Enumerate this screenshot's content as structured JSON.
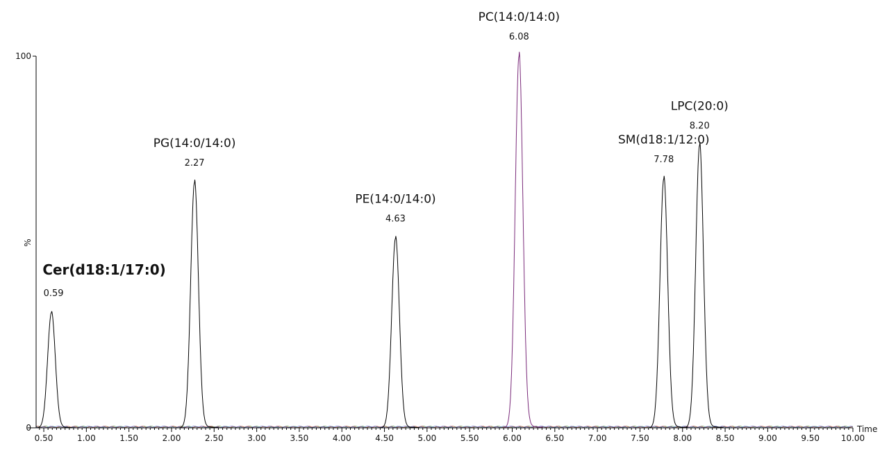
{
  "chart_data": {
    "type": "line",
    "title": "",
    "xlabel": "Time",
    "ylabel": "%",
    "xlim": [
      0.41,
      10.0
    ],
    "ylim": [
      0,
      100
    ],
    "y_ticks": [
      "0",
      "100"
    ],
    "x_ticks": [
      "0.50",
      "1.00",
      "1.50",
      "2.00",
      "2.50",
      "3.00",
      "3.50",
      "4.00",
      "4.50",
      "5.00",
      "5.50",
      "6.00",
      "6.50",
      "7.00",
      "7.50",
      "8.00",
      "8.50",
      "9.00",
      "9.50",
      "10.00"
    ],
    "grid": false,
    "peaks": [
      {
        "name": "Cer(d18:1/17:0)",
        "rt": "0.59",
        "x": 0.59,
        "height": 31,
        "color": "#000000"
      },
      {
        "name": "PG(14:0/14:0)",
        "rt": "2.27",
        "x": 2.27,
        "height": 66,
        "color": "#000000"
      },
      {
        "name": "PE(14:0/14:0)",
        "rt": "4.63",
        "x": 4.63,
        "height": 51,
        "color": "#000000"
      },
      {
        "name": "PC(14:0/14:0)",
        "rt": "6.08",
        "x": 6.08,
        "height": 100,
        "color": "#7a2a7a"
      },
      {
        "name": "SM(d18:1/12:0)",
        "rt": "7.78",
        "x": 7.78,
        "height": 67,
        "color": "#000000"
      },
      {
        "name": "LPC(20:0)",
        "rt": "8.20",
        "x": 8.2,
        "height": 76,
        "color": "#000000"
      }
    ]
  }
}
